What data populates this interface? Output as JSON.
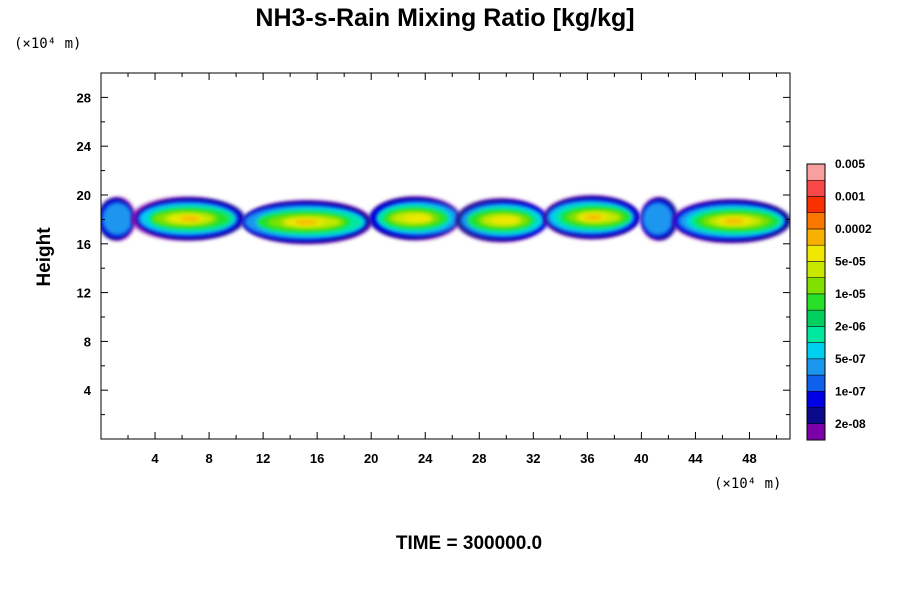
{
  "chart_data": {
    "type": "heatmap",
    "title": "NH3-s-Rain Mixing Ratio [kg/kg]",
    "ylabel": "Height",
    "xlabel": "",
    "x_unit_label": "(×10⁴ m)",
    "y_unit_label": "(×10⁴ m)",
    "footer": "TIME = 300000.0",
    "xlim": [
      0,
      51
    ],
    "ylim": [
      0,
      30
    ],
    "x_ticks": [
      4,
      8,
      12,
      16,
      20,
      24,
      28,
      32,
      36,
      40,
      44,
      48
    ],
    "y_ticks": [
      4,
      8,
      12,
      16,
      20,
      24,
      28
    ],
    "colorbar": {
      "levels": [
        "2e-08",
        "1e-07",
        "5e-07",
        "2e-06",
        "1e-05",
        "5e-05",
        "0.0002",
        "0.001",
        "0.005"
      ],
      "colors": [
        "#7a00a8",
        "#0a0a8a",
        "#0000e6",
        "#1060ee",
        "#1a96ee",
        "#00d0f0",
        "#00e8a0",
        "#00d060",
        "#28e028",
        "#80e000",
        "#c8e800",
        "#f0e800",
        "#f8b000",
        "#f87800",
        "#f83000",
        "#f84848",
        "#f8a0a0"
      ]
    },
    "cloud_band": {
      "y_bottom": 16.3,
      "y_top": 19.8,
      "max_level": "0.0002",
      "clusters_x": [
        [
          0,
          2.5
        ],
        [
          2.5,
          10.5
        ],
        [
          10.5,
          20
        ],
        [
          20,
          26.5
        ],
        [
          26.5,
          33
        ],
        [
          33,
          40
        ],
        [
          40,
          42.5
        ],
        [
          42.5,
          51
        ]
      ]
    }
  }
}
